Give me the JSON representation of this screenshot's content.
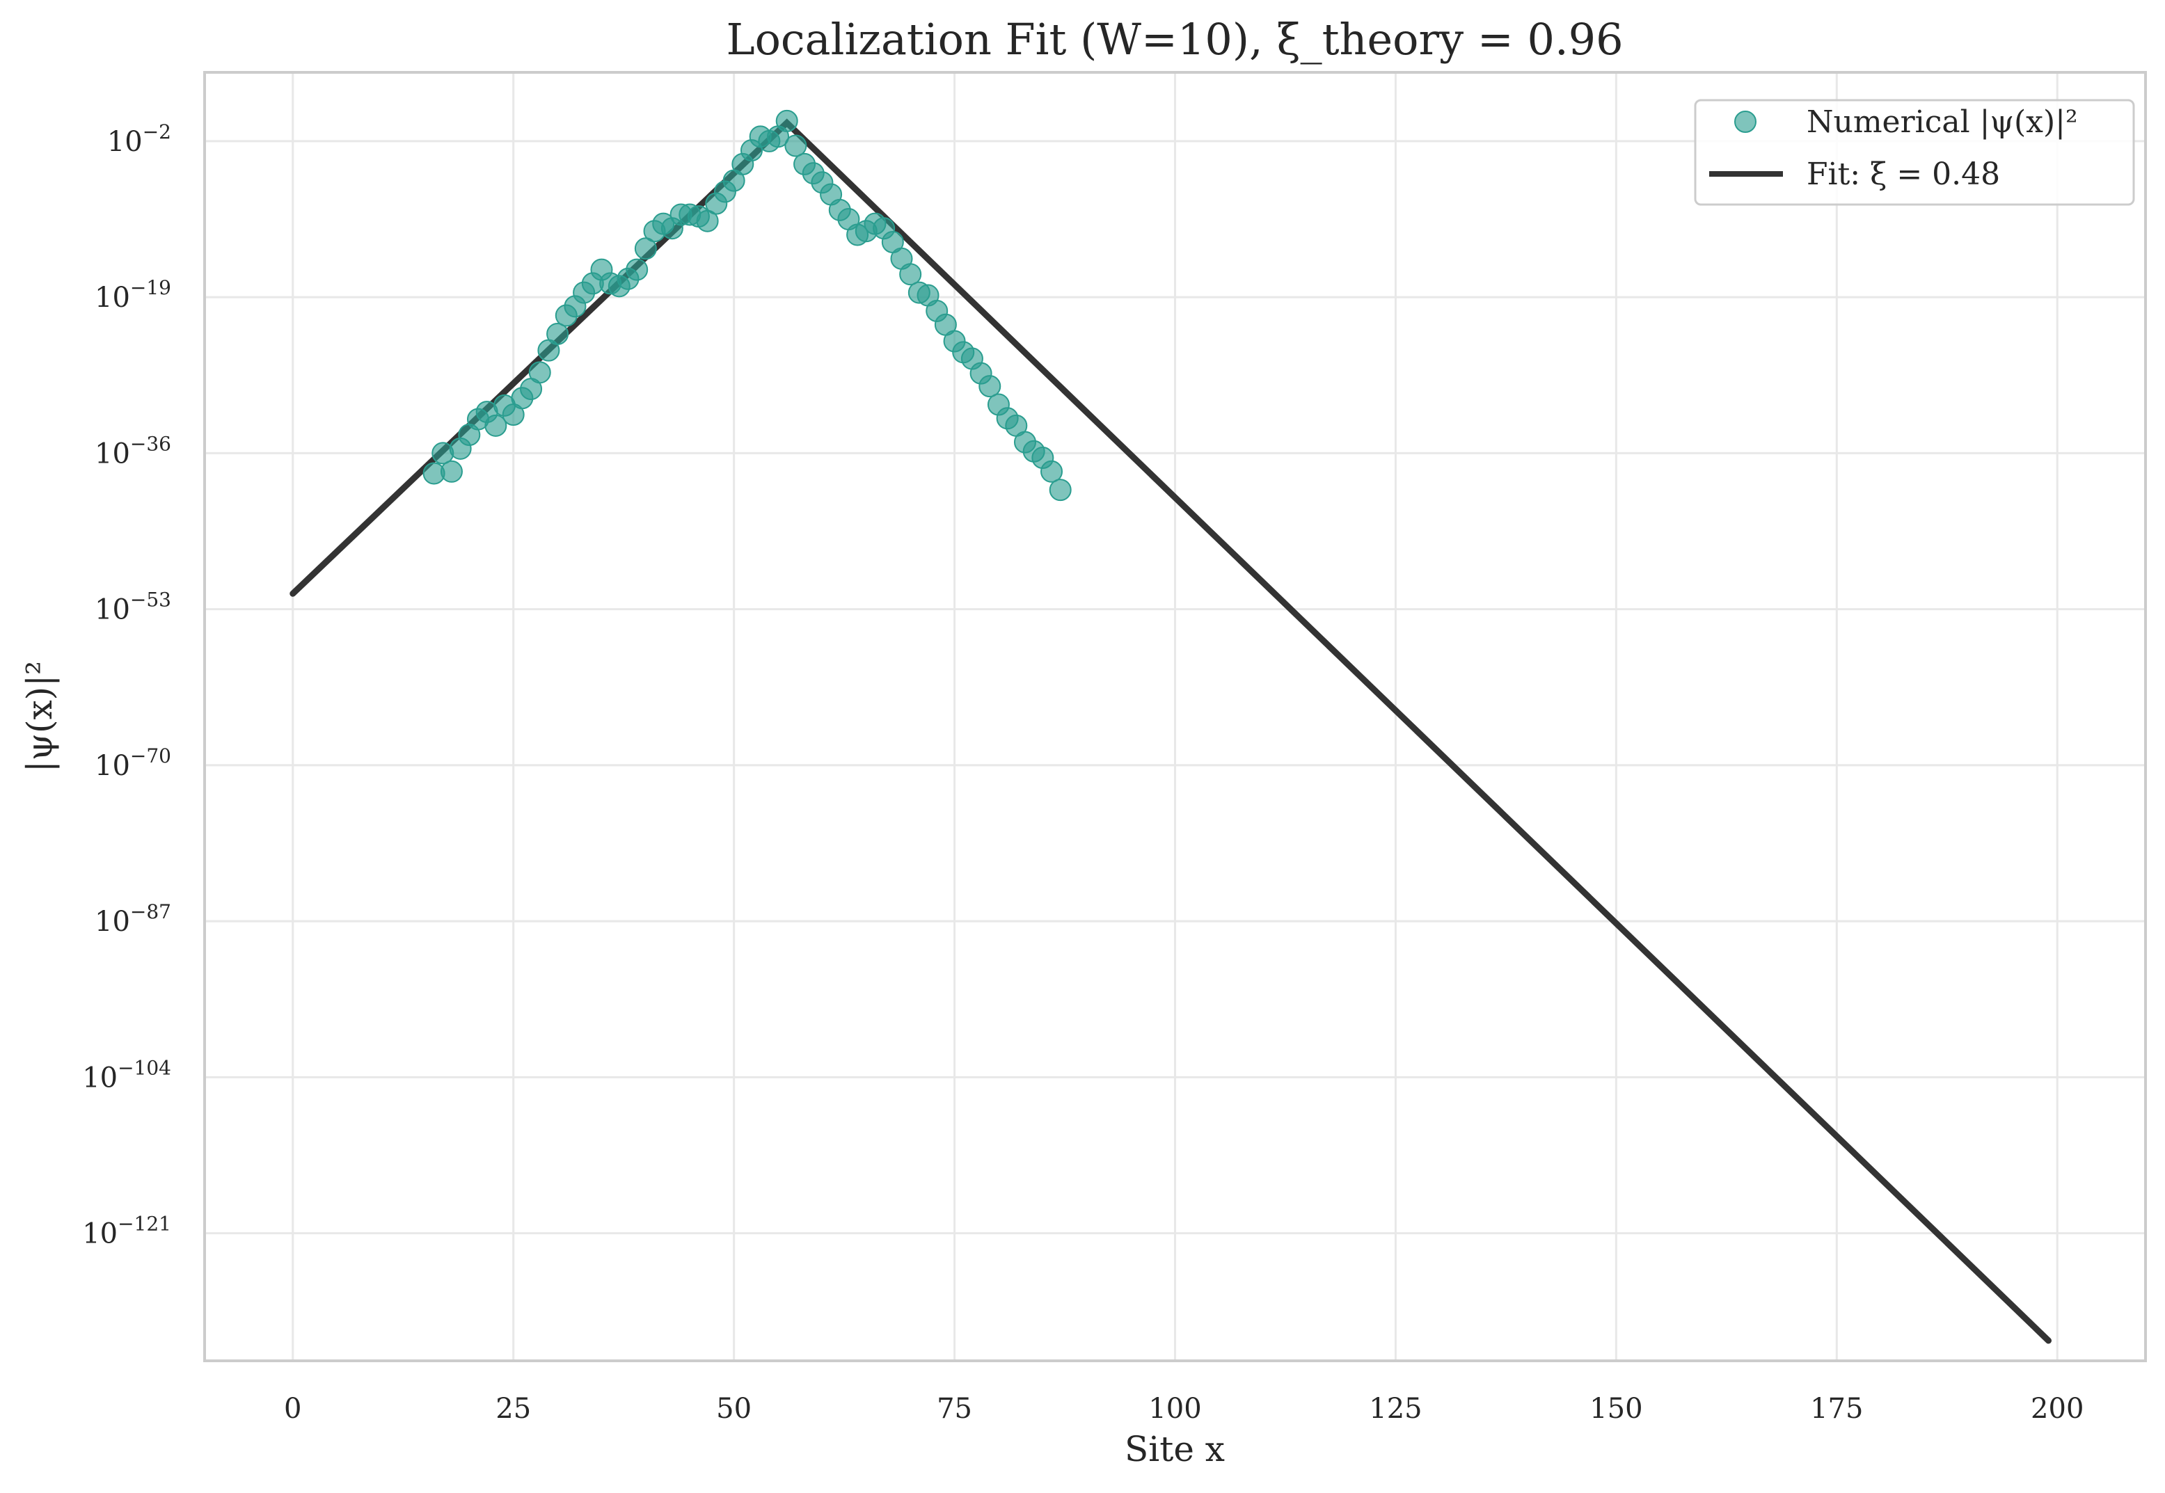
{
  "chart_data": {
    "type": "scatter",
    "title": "Localization Fit (W=10), ξ_theory = 0.96",
    "xlabel": "Site x",
    "ylabel": "|ψ(x)|²",
    "y_scale": "log",
    "xlim": [
      -10,
      210
    ],
    "ylim_log10": [
      -134.9,
      5.5
    ],
    "x_ticks": [
      0,
      25,
      50,
      75,
      100,
      125,
      150,
      175,
      200
    ],
    "y_ticks_exponents": [
      -2,
      -19,
      -36,
      -53,
      -70,
      -87,
      -104,
      -121
    ],
    "y_tick_base": "10",
    "grid": true,
    "legend_position": "top-right",
    "colors": {
      "scatter": "#2a9d8f",
      "fit": "#333333",
      "grid": "#e8e8e8",
      "frame": "#cccccc"
    },
    "series": [
      {
        "name": "Numerical |ψ(x)|²",
        "kind": "scatter",
        "points": [
          [
            16,
            -38.2
          ],
          [
            17,
            -36.0
          ],
          [
            18,
            -38.0
          ],
          [
            19,
            -35.5
          ],
          [
            20,
            -34.0
          ],
          [
            21,
            -32.3
          ],
          [
            22,
            -31.5
          ],
          [
            23,
            -33.0
          ],
          [
            24,
            -30.8
          ],
          [
            25,
            -31.8
          ],
          [
            26,
            -30.0
          ],
          [
            27,
            -29.0
          ],
          [
            28,
            -27.2
          ],
          [
            29,
            -24.8
          ],
          [
            30,
            -23.0
          ],
          [
            31,
            -21.0
          ],
          [
            32,
            -20.0
          ],
          [
            33,
            -18.5
          ],
          [
            34,
            -17.5
          ],
          [
            35,
            -16.0
          ],
          [
            36,
            -17.5
          ],
          [
            37,
            -17.8
          ],
          [
            38,
            -17.0
          ],
          [
            39,
            -16.0
          ],
          [
            40,
            -13.7
          ],
          [
            41,
            -11.8
          ],
          [
            42,
            -11.0
          ],
          [
            43,
            -11.5
          ],
          [
            44,
            -10.0
          ],
          [
            45,
            -10.0
          ],
          [
            46,
            -10.2
          ],
          [
            47,
            -10.7
          ],
          [
            48,
            -8.8
          ],
          [
            49,
            -7.5
          ],
          [
            50,
            -6.3
          ],
          [
            51,
            -4.5
          ],
          [
            52,
            -3.0
          ],
          [
            53,
            -1.5
          ],
          [
            54,
            -2.0
          ],
          [
            55,
            -1.5
          ],
          [
            56,
            0.2
          ],
          [
            57,
            -2.5
          ],
          [
            58,
            -4.5
          ],
          [
            59,
            -5.5
          ],
          [
            60,
            -6.5
          ],
          [
            61,
            -7.8
          ],
          [
            62,
            -9.5
          ],
          [
            63,
            -10.5
          ],
          [
            64,
            -12.2
          ],
          [
            65,
            -11.8
          ],
          [
            66,
            -11.0
          ],
          [
            67,
            -11.5
          ],
          [
            68,
            -13.0
          ],
          [
            69,
            -14.8
          ],
          [
            70,
            -16.5
          ],
          [
            71,
            -18.5
          ],
          [
            72,
            -18.8
          ],
          [
            73,
            -20.5
          ],
          [
            74,
            -22.0
          ],
          [
            75,
            -23.8
          ],
          [
            76,
            -25.0
          ],
          [
            77,
            -25.7
          ],
          [
            78,
            -27.3
          ],
          [
            79,
            -28.7
          ],
          [
            80,
            -30.7
          ],
          [
            81,
            -32.2
          ],
          [
            82,
            -33.0
          ],
          [
            83,
            -34.8
          ],
          [
            84,
            -35.8
          ],
          [
            85,
            -36.5
          ],
          [
            86,
            -38.0
          ],
          [
            87,
            -40.0
          ]
        ]
      },
      {
        "name": "Fit: ξ = 0.48",
        "kind": "line",
        "points": [
          [
            0,
            -51.3
          ],
          [
            56,
            0.0
          ],
          [
            199,
            -132.7
          ]
        ]
      }
    ]
  }
}
